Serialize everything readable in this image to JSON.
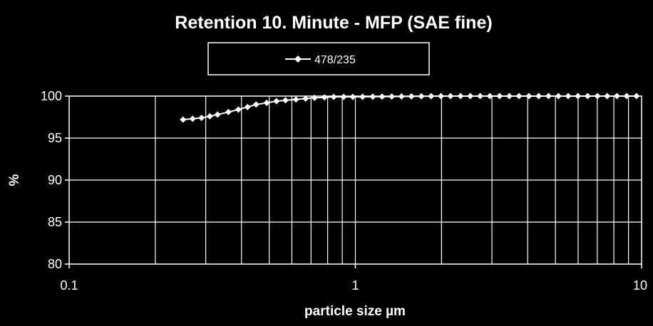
{
  "chart_data": {
    "type": "line",
    "title": "Retention 10. Minute - MFP (SAE fine)",
    "xlabel": "particle size µm",
    "ylabel": "%",
    "xscale": "log",
    "xlim": [
      0.1,
      10
    ],
    "ylim": [
      80,
      100
    ],
    "x_ticks": [
      "0.1",
      "1",
      "10"
    ],
    "y_ticks": [
      "80",
      "85",
      "90",
      "95",
      "100"
    ],
    "grid": true,
    "legend": "top-center",
    "series": [
      {
        "name": "478/235",
        "color": "#ffffff",
        "marker": "diamond",
        "x": [
          0.25,
          0.27,
          0.29,
          0.31,
          0.33,
          0.36,
          0.39,
          0.42,
          0.45,
          0.49,
          0.53,
          0.57,
          0.62,
          0.67,
          0.72,
          0.78,
          0.84,
          0.91,
          0.98,
          1.06,
          1.15,
          1.24,
          1.34,
          1.45,
          1.57,
          1.7,
          1.84,
          1.99,
          2.15,
          2.33,
          2.52,
          2.73,
          2.95,
          3.19,
          3.45,
          3.73,
          4.04,
          4.37,
          4.73,
          5.12,
          5.54,
          5.99,
          6.48,
          7.01,
          7.58,
          8.2,
          8.87,
          9.6
        ],
        "y": [
          97.2,
          97.3,
          97.4,
          97.6,
          97.8,
          98.1,
          98.4,
          98.7,
          99.0,
          99.2,
          99.4,
          99.5,
          99.6,
          99.7,
          99.8,
          99.85,
          99.9,
          99.9,
          99.9,
          99.92,
          99.93,
          99.94,
          99.95,
          99.96,
          99.97,
          99.98,
          99.99,
          100,
          100,
          100,
          100,
          100,
          100,
          100,
          100,
          100,
          100,
          100,
          100,
          100,
          100,
          100,
          100,
          100,
          100,
          100,
          100,
          100
        ]
      }
    ]
  }
}
